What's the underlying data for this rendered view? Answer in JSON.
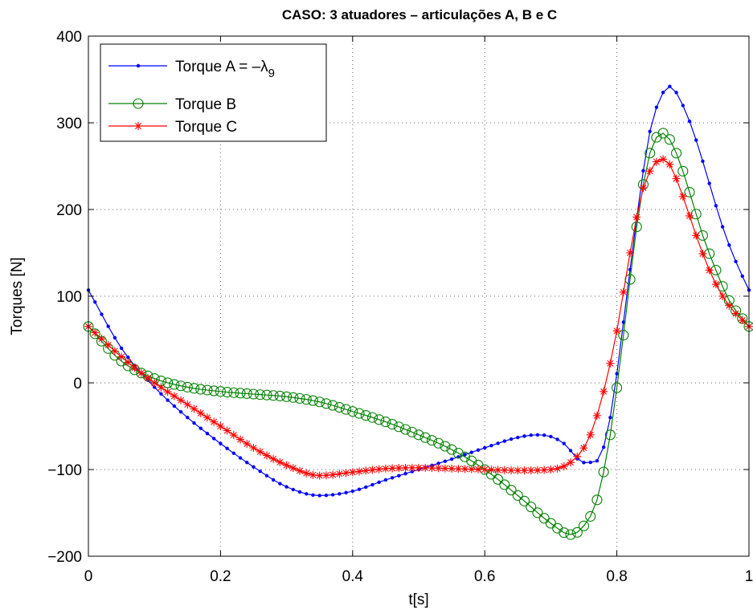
{
  "chart_data": {
    "type": "line",
    "title": "CASO: 3 atuadores – articulações A, B e C",
    "xlabel": "t[s]",
    "ylabel": "Torques [N]",
    "xlim": [
      0,
      1
    ],
    "ylim": [
      -200,
      400
    ],
    "xticks": [
      "0",
      "0.2",
      "0.4",
      "0.6",
      "0.8",
      "1"
    ],
    "yticks": [
      "−200",
      "−100",
      "0",
      "100",
      "200",
      "300",
      "400"
    ],
    "grid": true,
    "legend_position": "top-left",
    "series": [
      {
        "name": "Torque A = −λ9",
        "name_main": "Torque A = –λ",
        "name_sub": "9",
        "color": "#0000ff",
        "marker": "dot",
        "x": [
          0,
          0.05,
          0.1,
          0.15,
          0.2,
          0.25,
          0.3,
          0.35,
          0.4,
          0.45,
          0.5,
          0.55,
          0.6,
          0.65,
          0.68,
          0.7,
          0.72,
          0.75,
          0.77,
          0.79,
          0.81,
          0.83,
          0.85,
          0.87,
          0.88,
          0.9,
          0.92,
          0.94,
          0.96,
          0.98,
          1.0
        ],
        "y": [
          107,
          40,
          -5,
          -40,
          -70,
          -97,
          -120,
          -130,
          -125,
          -112,
          -100,
          -88,
          -75,
          -63,
          -60,
          -62,
          -70,
          -92,
          -90,
          -40,
          70,
          190,
          290,
          335,
          342,
          320,
          280,
          230,
          180,
          140,
          107
        ]
      },
      {
        "name": "Torque B",
        "color": "#008000",
        "marker": "circle",
        "x": [
          0,
          0.05,
          0.1,
          0.15,
          0.2,
          0.25,
          0.3,
          0.35,
          0.4,
          0.45,
          0.5,
          0.55,
          0.6,
          0.65,
          0.7,
          0.73,
          0.75,
          0.77,
          0.79,
          0.81,
          0.83,
          0.85,
          0.87,
          0.89,
          0.91,
          0.93,
          0.95,
          0.97,
          1.0
        ],
        "y": [
          65,
          25,
          5,
          -5,
          -10,
          -13,
          -16,
          -22,
          -33,
          -45,
          -60,
          -77,
          -100,
          -130,
          -162,
          -175,
          -165,
          -135,
          -60,
          55,
          180,
          265,
          288,
          265,
          220,
          170,
          130,
          95,
          65
        ]
      },
      {
        "name": "Torque C",
        "color": "#ff0000",
        "marker": "star",
        "x": [
          0,
          0.05,
          0.1,
          0.15,
          0.2,
          0.25,
          0.3,
          0.35,
          0.4,
          0.45,
          0.5,
          0.55,
          0.6,
          0.65,
          0.7,
          0.74,
          0.76,
          0.78,
          0.8,
          0.82,
          0.84,
          0.86,
          0.87,
          0.88,
          0.9,
          0.92,
          0.94,
          0.96,
          0.98,
          1.0
        ],
        "y": [
          65,
          30,
          0,
          -25,
          -50,
          -75,
          -95,
          -107,
          -103,
          -99,
          -98,
          -99,
          -100,
          -101,
          -100,
          -85,
          -60,
          -10,
          60,
          150,
          225,
          255,
          258,
          252,
          215,
          170,
          130,
          100,
          80,
          65
        ]
      }
    ]
  }
}
